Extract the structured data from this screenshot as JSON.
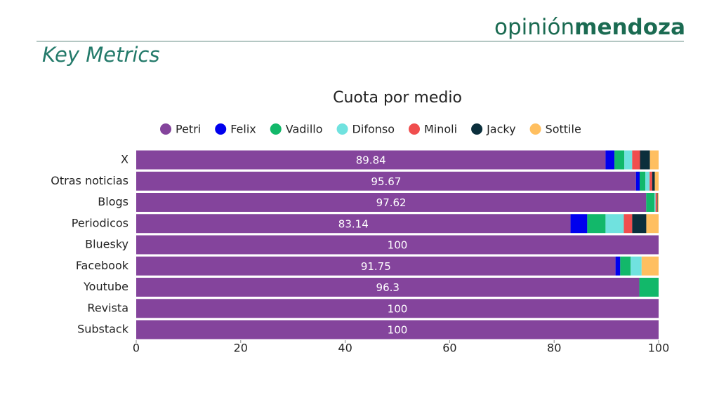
{
  "header": {
    "brand_light": "opinión",
    "brand_bold": "mendoza",
    "subtitle": "Key Metrics"
  },
  "chart_data": {
    "type": "stacked_barh",
    "title": "Cuota por medio",
    "categories": [
      "X",
      "Otras noticias",
      "Blogs",
      "Periodicos",
      "Bluesky",
      "Facebook",
      "Youtube",
      "Revista",
      "Substack"
    ],
    "series": [
      {
        "name": "Petri",
        "color": "#84449c",
        "values": [
          89.84,
          95.67,
          97.62,
          83.14,
          100,
          91.75,
          96.3,
          100,
          100
        ]
      },
      {
        "name": "Felix",
        "color": "#0000ee",
        "values": [
          1.7,
          0.7,
          0,
          3.2,
          0,
          0.9,
          0,
          0,
          0
        ]
      },
      {
        "name": "Vadillo",
        "color": "#12b86a",
        "values": [
          1.9,
          1.1,
          1.6,
          3.5,
          0,
          2.0,
          3.7,
          0,
          0
        ]
      },
      {
        "name": "Difonso",
        "color": "#70e2df",
        "values": [
          1.5,
          0.8,
          0.2,
          3.5,
          0,
          2.1,
          0,
          0,
          0
        ]
      },
      {
        "name": "Minoli",
        "color": "#f04e4e",
        "values": [
          1.5,
          0.5,
          0.3,
          1.6,
          0,
          0,
          0,
          0,
          0
        ]
      },
      {
        "name": "Jacky",
        "color": "#0b2f3c",
        "values": [
          1.9,
          0.5,
          0.1,
          2.7,
          0,
          0,
          0,
          0,
          0
        ]
      },
      {
        "name": "Sottile",
        "color": "#ffbf60",
        "values": [
          1.66,
          0.73,
          0.18,
          2.36,
          0,
          3.25,
          0,
          0,
          0
        ]
      }
    ],
    "xlim": [
      0,
      100
    ],
    "xticks": [
      0,
      20,
      40,
      60,
      80,
      100
    ],
    "label_series": 0
  }
}
